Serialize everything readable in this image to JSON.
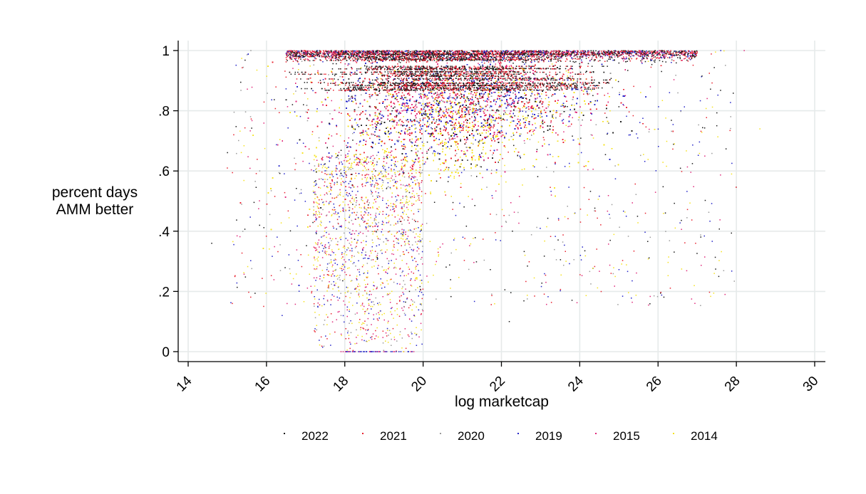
{
  "chart_data": {
    "type": "scatter",
    "title": "",
    "xlabel": "log marketcap",
    "ylabel_lines": [
      "percent days",
      "AMM better"
    ],
    "xlim": [
      14,
      30
    ],
    "ylim": [
      0,
      1
    ],
    "x_ticks": [
      14,
      16,
      18,
      20,
      22,
      24,
      26,
      28,
      30
    ],
    "x_tick_labels": [
      "14",
      "16",
      "18",
      "20",
      "22",
      "24",
      "26",
      "28",
      "30"
    ],
    "y_ticks": [
      0,
      0.2,
      0.4,
      0.6,
      0.8,
      1
    ],
    "y_tick_labels": [
      "0",
      ".2",
      ".4",
      ".6",
      ".8",
      "1"
    ],
    "grid": true,
    "legend_position": "bottom",
    "series": [
      {
        "name": "2022",
        "color": "#1a1a1a"
      },
      {
        "name": "2021",
        "color": "#e8212e"
      },
      {
        "name": "2020",
        "color": "#9a9a9a"
      },
      {
        "name": "2019",
        "color": "#2323c8"
      },
      {
        "name": "2015",
        "color": "#e0287a"
      },
      {
        "name": "2014",
        "color": "#f5e21b"
      }
    ],
    "distribution_note_points": [
      {
        "x": 14.6,
        "y": 0.36
      },
      {
        "x": 15.0,
        "y": 0.61
      },
      {
        "x": 15.6,
        "y": 1.0
      },
      {
        "x": 16.4,
        "y": 0.12
      },
      {
        "x": 18.2,
        "y": 0.0
      },
      {
        "x": 19.5,
        "y": 0.0
      },
      {
        "x": 22.2,
        "y": 0.1
      },
      {
        "x": 24.8,
        "y": 0.26
      },
      {
        "x": 25.8,
        "y": 0.38
      },
      {
        "x": 27.6,
        "y": 1.0
      },
      {
        "x": 28.2,
        "y": 1.0
      },
      {
        "x": 28.6,
        "y": 0.74
      }
    ]
  }
}
